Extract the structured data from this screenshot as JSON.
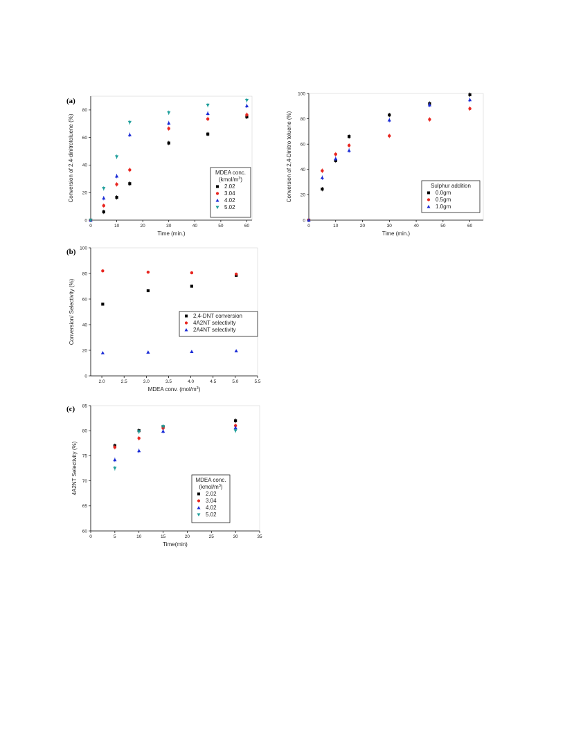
{
  "chart_data": [
    {
      "id": "a",
      "type": "scatter",
      "panel_label": "(a)",
      "xlabel": "Time (min.)",
      "ylabel": "Conversion of 2,4-dinitrotoluene (%)",
      "xlim": [
        0,
        62
      ],
      "ylim": [
        0,
        90
      ],
      "xticks": [
        0,
        10,
        20,
        30,
        40,
        50,
        60
      ],
      "yticks": [
        0,
        20,
        40,
        60,
        80
      ],
      "legend": {
        "title_line1": "MDEA conc.",
        "title_line2": "(kmol/m",
        "title_sup": "3",
        "title_end": ")",
        "placement": "bottom-right"
      },
      "series": [
        {
          "name": "2.02",
          "marker": "square",
          "color": "#000000",
          "x": [
            0,
            5,
            10,
            15,
            30,
            45,
            60
          ],
          "y": [
            0,
            6,
            16.5,
            26.5,
            56,
            62.5,
            75
          ]
        },
        {
          "name": "3.04",
          "marker": "circle",
          "color": "#e8251f",
          "x": [
            0,
            5,
            10,
            15,
            30,
            45,
            60
          ],
          "y": [
            0,
            10.5,
            26,
            36.5,
            66.5,
            73.5,
            76.5
          ]
        },
        {
          "name": "4.02",
          "marker": "triangle-up",
          "color": "#1a2bd6",
          "x": [
            0,
            5,
            10,
            15,
            30,
            45,
            60
          ],
          "y": [
            0,
            16,
            32,
            62,
            70.5,
            77.5,
            83
          ]
        },
        {
          "name": "5.02",
          "marker": "triangle-down",
          "color": "#1d9e9a",
          "x": [
            0,
            5,
            10,
            15,
            30,
            45,
            60
          ],
          "y": [
            0,
            23,
            46,
            71,
            78,
            83.5,
            87
          ]
        }
      ]
    },
    {
      "id": "a2",
      "type": "scatter",
      "panel_label": "",
      "xlabel": "Time (min.)",
      "ylabel": "Conversion of 2,4-Dinitro toluene (%)",
      "xlim": [
        0,
        65
      ],
      "ylim": [
        0,
        100
      ],
      "xticks": [
        0,
        10,
        20,
        30,
        40,
        50,
        60
      ],
      "yticks": [
        0,
        20,
        40,
        60,
        80,
        100
      ],
      "legend": {
        "title_line1": "Sulphur addition",
        "placement": "bottom-right"
      },
      "series": [
        {
          "name": "0.0gm",
          "marker": "square",
          "color": "#000000",
          "x": [
            0,
            5,
            10,
            15,
            30,
            45,
            60
          ],
          "y": [
            0,
            24.5,
            47,
            66,
            83,
            92,
            99
          ]
        },
        {
          "name": "0.5gm",
          "marker": "circle",
          "color": "#e8251f",
          "x": [
            0,
            5,
            10,
            15,
            30,
            45,
            60
          ],
          "y": [
            0,
            39,
            52,
            59,
            66.5,
            79.5,
            88
          ]
        },
        {
          "name": "1.0gm",
          "marker": "triangle-up",
          "color": "#1a2bd6",
          "x": [
            0,
            5,
            10,
            15,
            30,
            45,
            60
          ],
          "y": [
            0,
            33.5,
            48.5,
            55,
            79,
            91,
            95
          ]
        }
      ]
    },
    {
      "id": "b",
      "type": "scatter",
      "panel_label": "(b)",
      "xlabel_main": "MDEA conv. (mol/m",
      "xlabel_sup": "3",
      "xlabel_end": ")",
      "ylabel": "Conversion/ Selectivity (%)",
      "xlim": [
        1.75,
        5.5
      ],
      "ylim": [
        0,
        100
      ],
      "xticks": [
        2.0,
        2.5,
        3.0,
        3.5,
        4.0,
        4.5,
        5.0,
        5.5
      ],
      "xtick_labels": [
        "2.0",
        "2.5",
        "3.0",
        "3.5",
        "4.0",
        "4.5",
        "5.0",
        "5.5"
      ],
      "yticks": [
        0,
        20,
        40,
        60,
        80,
        100
      ],
      "legend": {
        "placement": "center-right"
      },
      "series": [
        {
          "name": "2,4-DNT conversion",
          "marker": "square",
          "color": "#000000",
          "x": [
            2.02,
            3.04,
            4.02,
            5.02
          ],
          "y": [
            56,
            66.5,
            70,
            78.5
          ]
        },
        {
          "name": "4A2NT   selectivity",
          "marker": "circle",
          "color": "#e8251f",
          "x": [
            2.02,
            3.04,
            4.02,
            5.02
          ],
          "y": [
            82,
            81,
            80.5,
            79.5
          ]
        },
        {
          "name": "2A4NT   selectivity",
          "marker": "triangle-up",
          "color": "#1a2bd6",
          "x": [
            2.02,
            3.04,
            4.02,
            5.02
          ],
          "y": [
            18,
            18.5,
            19,
            19.5
          ]
        }
      ]
    },
    {
      "id": "c",
      "type": "scatter",
      "panel_label": "(c)",
      "xlabel": "Time(min)",
      "ylabel": "4A2NT Selectivity (%)",
      "xlim": [
        0,
        35
      ],
      "ylim": [
        60,
        85
      ],
      "xticks": [
        0,
        5,
        10,
        15,
        20,
        25,
        30,
        35
      ],
      "yticks": [
        60,
        65,
        70,
        75,
        80,
        85
      ],
      "legend": {
        "title_line1": "MDEA conc.",
        "title_line2": "(kmol/m",
        "title_sup": "3",
        "title_end": ")",
        "placement": "center"
      },
      "series": [
        {
          "name": "2.02",
          "marker": "square",
          "color": "#000000",
          "x": [
            5,
            10,
            15,
            30
          ],
          "y": [
            77,
            80,
            80.8,
            82
          ]
        },
        {
          "name": "3.04",
          "marker": "circle",
          "color": "#e8251f",
          "x": [
            5,
            10,
            15,
            30
          ],
          "y": [
            76.7,
            78.5,
            80.5,
            81
          ]
        },
        {
          "name": "4.02",
          "marker": "triangle-up",
          "color": "#1a2bd6",
          "x": [
            5,
            10,
            15,
            30
          ],
          "y": [
            74.2,
            76,
            79.9,
            80.6
          ]
        },
        {
          "name": "5.02",
          "marker": "triangle-down",
          "color": "#1d9e9a",
          "x": [
            5,
            10,
            15,
            30
          ],
          "y": [
            72.5,
            79.8,
            80.8,
            80
          ]
        }
      ]
    }
  ]
}
